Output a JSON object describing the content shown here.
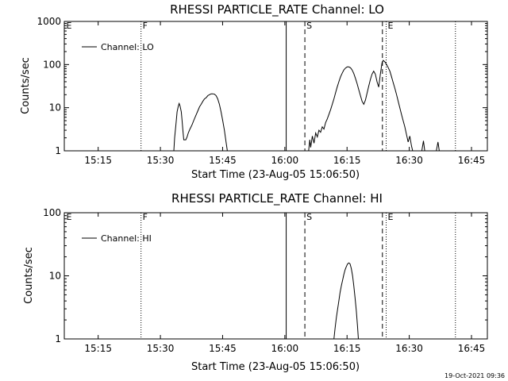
{
  "footer_timestamp": "19-Oct-2021 09:36",
  "chart_data": [
    {
      "type": "line",
      "title": "RHESSI PARTICLE_RATE Channel: LO",
      "xlabel": "Start Time (23-Aug-05 15:06:50)",
      "ylabel": "Counts/sec",
      "x_unit": "minutes after 15:06:50",
      "x_ticks": [
        {
          "value": 8.17,
          "label": "15:15"
        },
        {
          "value": 23.17,
          "label": "15:30"
        },
        {
          "value": 38.17,
          "label": "15:45"
        },
        {
          "value": 53.17,
          "label": "16:00"
        },
        {
          "value": 68.17,
          "label": "16:15"
        },
        {
          "value": 83.17,
          "label": "16:30"
        },
        {
          "value": 98.17,
          "label": "16:45"
        }
      ],
      "xlim": [
        0,
        102
      ],
      "yscale": "log",
      "ylim": [
        1,
        1000
      ],
      "y_ticks": [
        {
          "value": 1,
          "label": "1"
        },
        {
          "value": 10,
          "label": "10"
        },
        {
          "value": 100,
          "label": "100"
        },
        {
          "value": 1000,
          "label": "1000"
        }
      ],
      "legend": {
        "label": "Channel: LO",
        "placement": "top-left"
      },
      "markers": [
        {
          "x": 0.1,
          "label": "E",
          "style": "none"
        },
        {
          "x": 18.5,
          "label": "F",
          "style": "dotted"
        },
        {
          "x": 53.5,
          "label": "",
          "style": "solid"
        },
        {
          "x": 58.0,
          "label": "S",
          "style": "dashed"
        },
        {
          "x": 76.7,
          "label": "",
          "style": "dashed"
        },
        {
          "x": 77.6,
          "label": "E",
          "style": "dotted"
        },
        {
          "x": 94.3,
          "label": "",
          "style": "dotted"
        }
      ],
      "series": [
        {
          "name": "Channel: LO",
          "segments": [
            [
              [
                26.4,
                1
              ],
              [
                26.6,
                2
              ],
              [
                26.9,
                4
              ],
              [
                27.2,
                8
              ],
              [
                27.5,
                11
              ],
              [
                27.7,
                12.5
              ],
              [
                27.9,
                11
              ],
              [
                28.2,
                8
              ],
              [
                28.4,
                5
              ],
              [
                28.6,
                3
              ],
              [
                28.8,
                1.8
              ],
              [
                29.3,
                1.8
              ],
              [
                29.6,
                2.1
              ],
              [
                29.9,
                2.6
              ],
              [
                30.3,
                3.2
              ],
              [
                30.8,
                4
              ],
              [
                31.2,
                5
              ],
              [
                31.7,
                6.5
              ],
              [
                32.2,
                8.5
              ],
              [
                32.6,
                10.5
              ],
              [
                33.0,
                12
              ],
              [
                33.4,
                14
              ],
              [
                33.8,
                16
              ],
              [
                34.2,
                17
              ],
              [
                34.6,
                19
              ],
              [
                35.0,
                20
              ],
              [
                35.4,
                21
              ],
              [
                35.8,
                21
              ],
              [
                36.2,
                20.5
              ],
              [
                36.6,
                19
              ],
              [
                37.0,
                16
              ],
              [
                37.4,
                12
              ],
              [
                37.8,
                8
              ],
              [
                38.2,
                5
              ],
              [
                38.6,
                3
              ],
              [
                39.0,
                1.6
              ],
              [
                39.3,
                1
              ]
            ],
            [
              [
                58.9,
                1
              ],
              [
                59.2,
                1.8
              ],
              [
                59.4,
                1.2
              ],
              [
                59.8,
                2.2
              ],
              [
                60.2,
                1.5
              ],
              [
                60.6,
                2.6
              ],
              [
                61.0,
                2.1
              ],
              [
                61.4,
                3.0
              ],
              [
                61.8,
                2.7
              ],
              [
                62.2,
                3.6
              ],
              [
                62.6,
                3.2
              ],
              [
                63.0,
                4.5
              ],
              [
                63.4,
                5.5
              ],
              [
                63.8,
                7
              ],
              [
                64.2,
                9
              ],
              [
                64.6,
                12
              ],
              [
                65.0,
                16
              ],
              [
                65.4,
                22
              ],
              [
                65.8,
                30
              ],
              [
                66.2,
                40
              ],
              [
                66.6,
                52
              ],
              [
                67.0,
                63
              ],
              [
                67.4,
                75
              ],
              [
                67.8,
                83
              ],
              [
                68.2,
                88
              ],
              [
                68.6,
                88
              ],
              [
                69.0,
                84
              ],
              [
                69.4,
                75
              ],
              [
                69.8,
                62
              ],
              [
                70.2,
                48
              ],
              [
                70.6,
                36
              ],
              [
                71.0,
                26
              ],
              [
                71.4,
                19
              ],
              [
                71.8,
                14
              ],
              [
                72.2,
                12
              ],
              [
                72.6,
                15
              ],
              [
                73.0,
                22
              ],
              [
                73.4,
                32
              ],
              [
                73.8,
                45
              ],
              [
                74.2,
                60
              ],
              [
                74.6,
                70
              ],
              [
                75.0,
                60
              ],
              [
                75.4,
                40
              ],
              [
                75.8,
                30
              ],
              [
                76.2,
                60
              ],
              [
                76.6,
                110
              ],
              [
                76.9,
                125
              ],
              [
                77.3,
                115
              ],
              [
                77.7,
                100
              ],
              [
                78.1,
                85
              ],
              [
                78.5,
                70
              ],
              [
                78.9,
                52
              ],
              [
                79.3,
                38
              ],
              [
                79.7,
                28
              ],
              [
                80.1,
                20
              ],
              [
                80.5,
                14
              ],
              [
                80.9,
                10
              ],
              [
                81.3,
                7
              ],
              [
                81.7,
                5
              ],
              [
                82.1,
                3.6
              ],
              [
                82.5,
                2.4
              ],
              [
                82.9,
                1.6
              ],
              [
                83.3,
                2.2
              ],
              [
                83.7,
                1.3
              ],
              [
                84.0,
                1
              ]
            ],
            [
              [
                86.2,
                1
              ],
              [
                86.6,
                1.7
              ],
              [
                86.9,
                1
              ]
            ],
            [
              [
                89.7,
                1
              ],
              [
                90.1,
                1.6
              ],
              [
                90.4,
                1
              ]
            ]
          ]
        }
      ]
    },
    {
      "type": "line",
      "title": "RHESSI PARTICLE_RATE Channel: HI",
      "xlabel": "Start Time (23-Aug-05 15:06:50)",
      "ylabel": "Counts/sec",
      "x_unit": "minutes after 15:06:50",
      "x_ticks": [
        {
          "value": 8.17,
          "label": "15:15"
        },
        {
          "value": 23.17,
          "label": "15:30"
        },
        {
          "value": 38.17,
          "label": "15:45"
        },
        {
          "value": 53.17,
          "label": "16:00"
        },
        {
          "value": 68.17,
          "label": "16:15"
        },
        {
          "value": 83.17,
          "label": "16:30"
        },
        {
          "value": 98.17,
          "label": "16:45"
        }
      ],
      "xlim": [
        0,
        102
      ],
      "yscale": "log",
      "ylim": [
        1,
        100
      ],
      "y_ticks": [
        {
          "value": 1,
          "label": "1"
        },
        {
          "value": 10,
          "label": "10"
        },
        {
          "value": 100,
          "label": "100"
        }
      ],
      "legend": {
        "label": "Channel: HI",
        "placement": "top-left"
      },
      "markers": [
        {
          "x": 0.1,
          "label": "E",
          "style": "none"
        },
        {
          "x": 18.5,
          "label": "F",
          "style": "dotted"
        },
        {
          "x": 53.5,
          "label": "",
          "style": "solid"
        },
        {
          "x": 58.0,
          "label": "S",
          "style": "dashed"
        },
        {
          "x": 76.7,
          "label": "",
          "style": "dashed"
        },
        {
          "x": 77.6,
          "label": "E",
          "style": "dotted"
        },
        {
          "x": 94.3,
          "label": "",
          "style": "dotted"
        }
      ],
      "series": [
        {
          "name": "Channel: HI",
          "segments": [
            [
              [
                65.0,
                1
              ],
              [
                65.3,
                1.5
              ],
              [
                65.6,
                2.2
              ],
              [
                65.9,
                3
              ],
              [
                66.2,
                4
              ],
              [
                66.5,
                5.5
              ],
              [
                66.8,
                7
              ],
              [
                67.1,
                8.5
              ],
              [
                67.4,
                10.5
              ],
              [
                67.7,
                12.5
              ],
              [
                68.0,
                14
              ],
              [
                68.3,
                15.5
              ],
              [
                68.6,
                16
              ],
              [
                68.9,
                15.5
              ],
              [
                69.2,
                13
              ],
              [
                69.5,
                10
              ],
              [
                69.8,
                7
              ],
              [
                70.1,
                4.5
              ],
              [
                70.4,
                2.8
              ],
              [
                70.7,
                1.6
              ],
              [
                70.9,
                1
              ]
            ]
          ]
        }
      ]
    }
  ]
}
